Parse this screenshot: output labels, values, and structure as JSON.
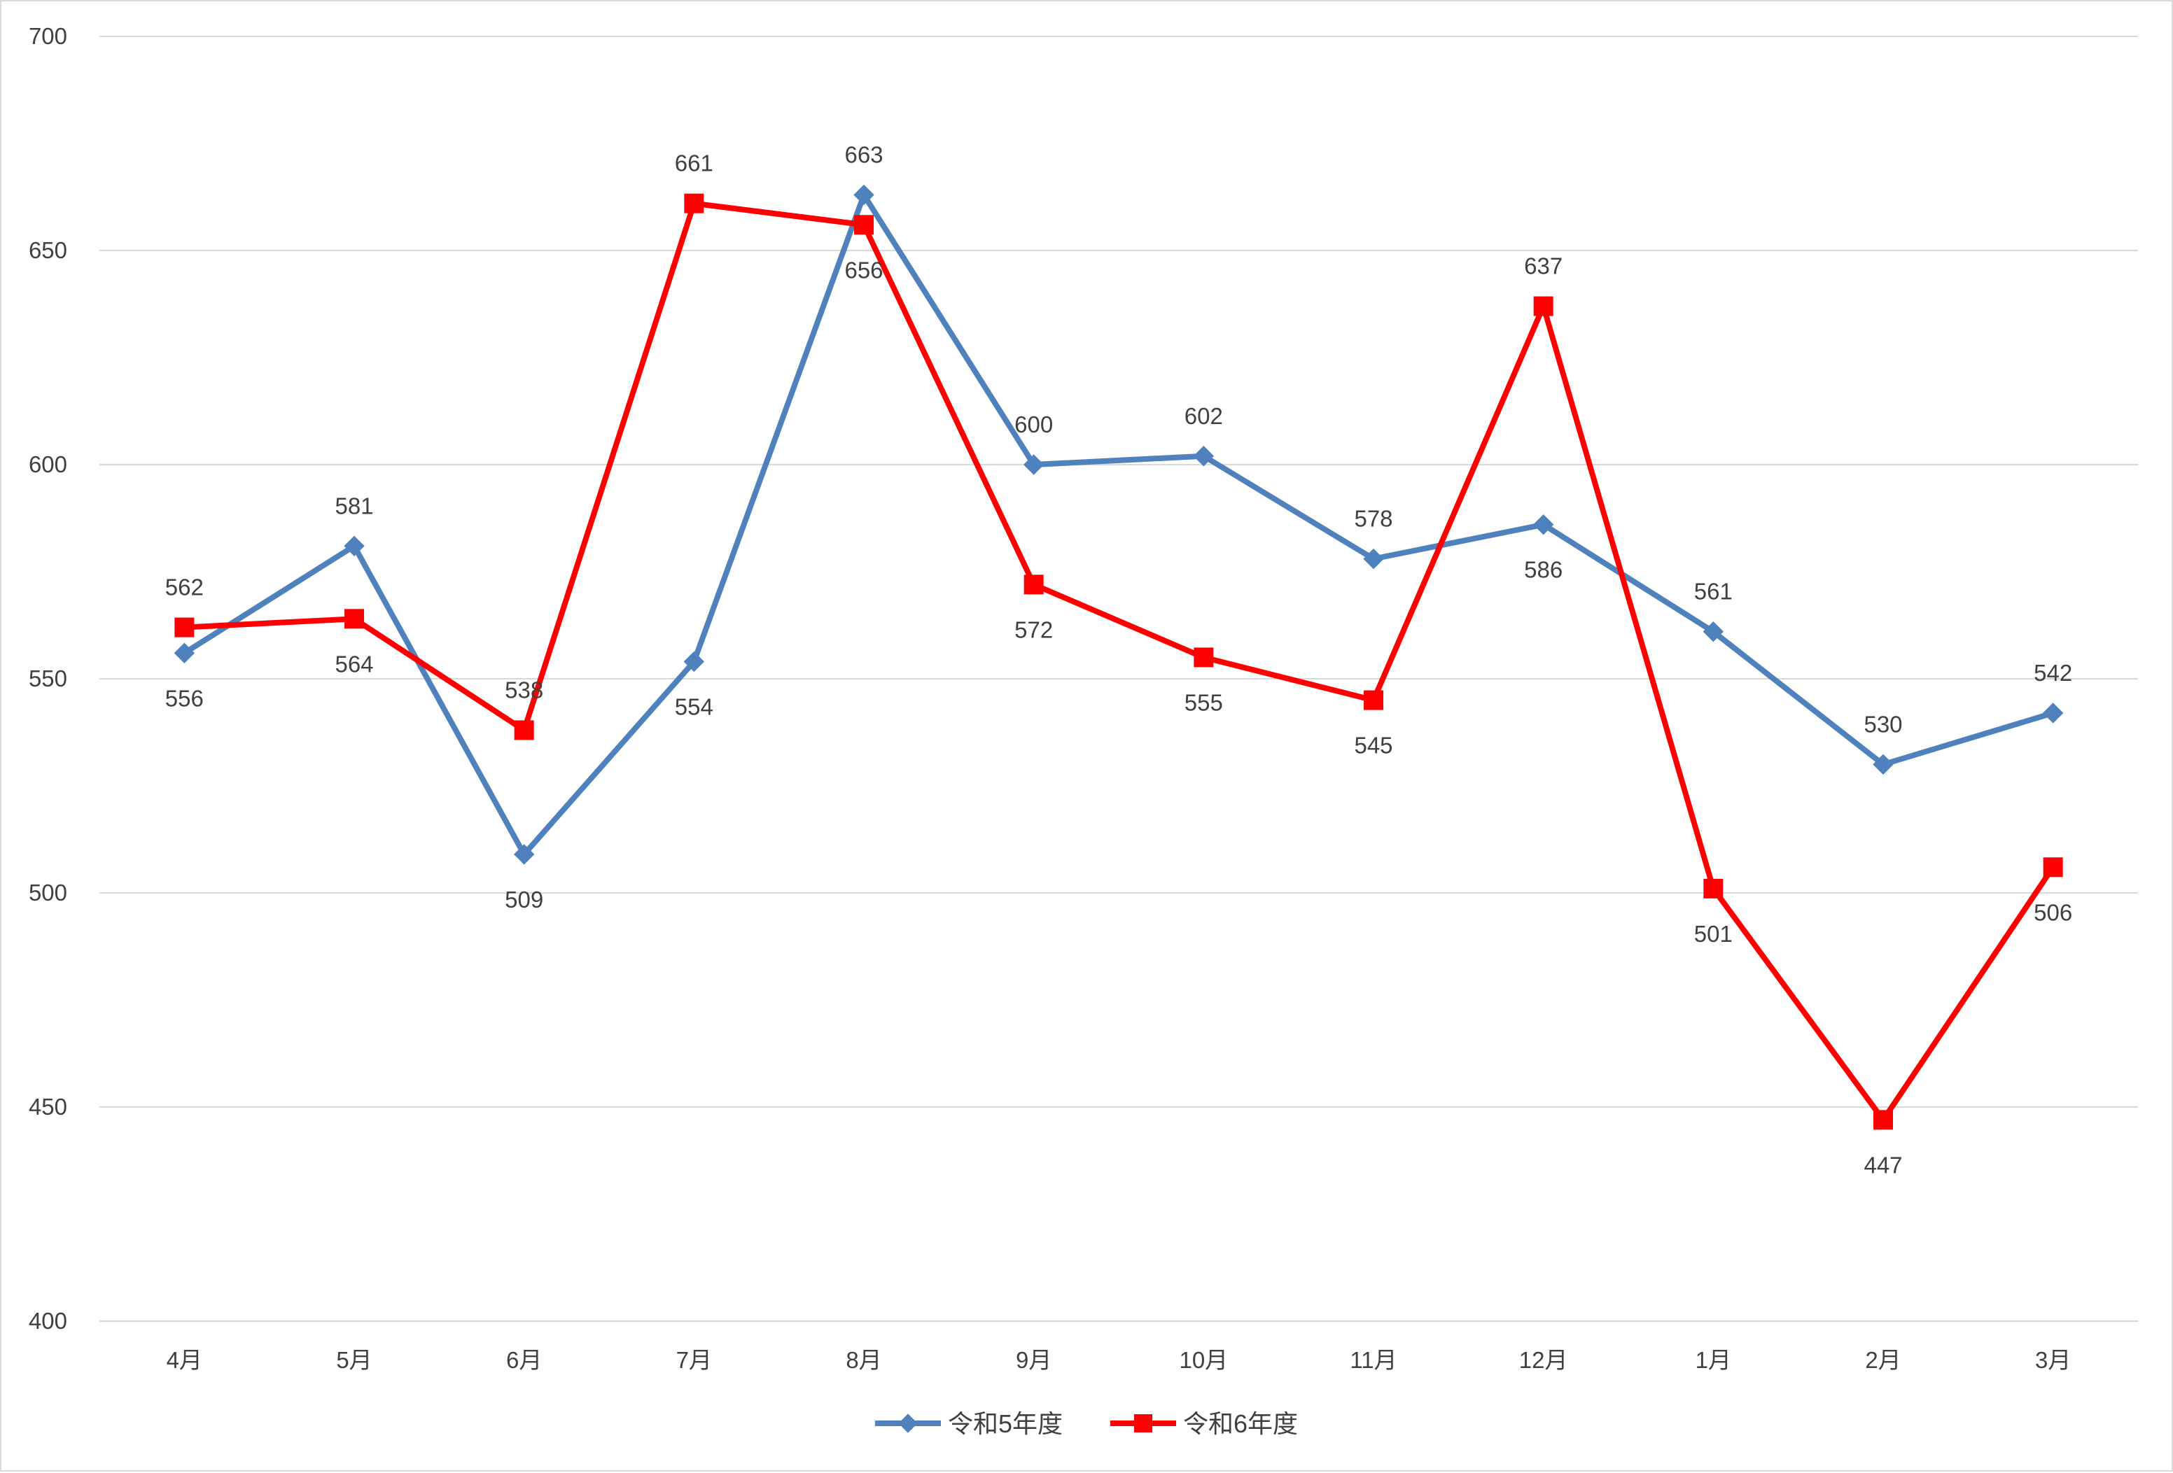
{
  "chart_data": {
    "type": "line",
    "title": "",
    "xlabel": "",
    "ylabel": "",
    "categories": [
      "4月",
      "5月",
      "6月",
      "7月",
      "8月",
      "9月",
      "10月",
      "11月",
      "12月",
      "1月",
      "2月",
      "3月"
    ],
    "ylim": [
      400,
      700
    ],
    "yticks": [
      400,
      450,
      500,
      550,
      600,
      650,
      700
    ],
    "grid": true,
    "legend_position": "bottom",
    "series": [
      {
        "name": "令和5年度",
        "marker": "diamond",
        "color": "#4f81bd",
        "values": [
          556,
          581,
          509,
          554,
          663,
          600,
          602,
          578,
          586,
          561,
          530,
          542
        ]
      },
      {
        "name": "令和6年度",
        "marker": "square",
        "color": "#ff0000",
        "values": [
          562,
          564,
          538,
          661,
          656,
          572,
          555,
          545,
          637,
          501,
          447,
          506
        ]
      }
    ]
  }
}
